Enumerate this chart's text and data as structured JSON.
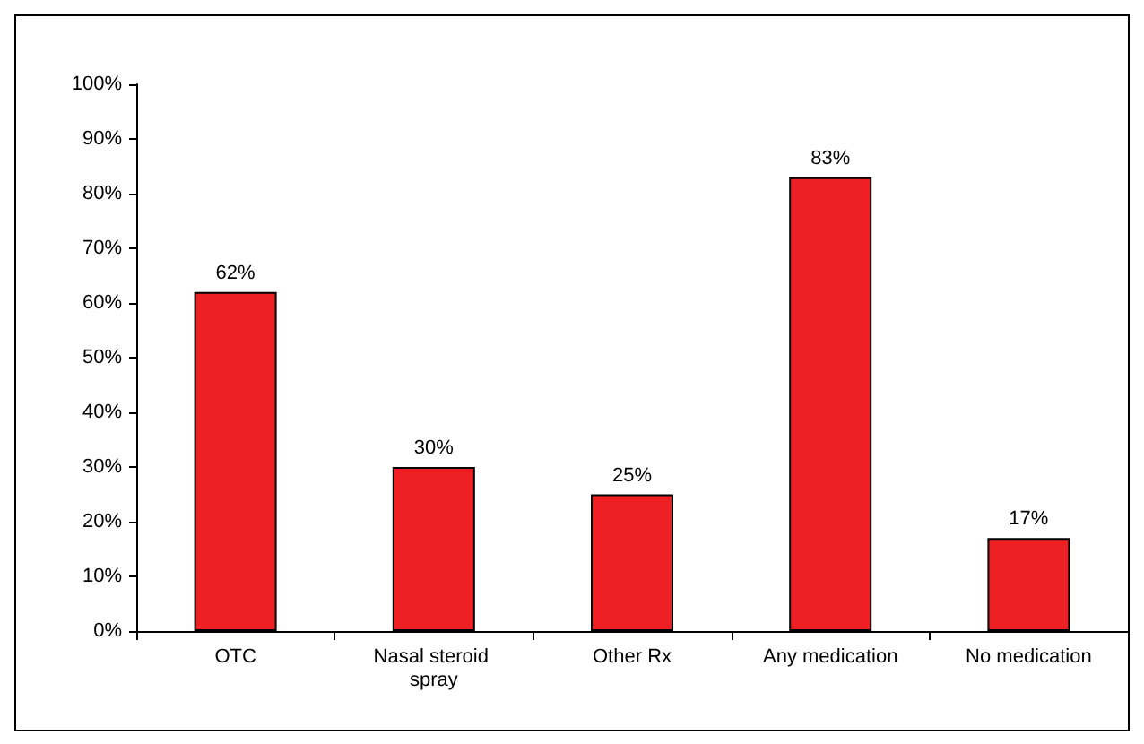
{
  "chart_data": {
    "type": "bar",
    "categories": [
      "OTC",
      "Nasal steroid spray",
      "Other Rx",
      "Any medication",
      "No medication"
    ],
    "values": [
      62,
      30,
      25,
      83,
      17
    ],
    "color": "#ee2024",
    "value_labels": [
      "62%",
      "30%",
      "25%",
      "83%",
      "17%"
    ],
    "ylim": [
      0,
      100
    ],
    "yticks": [
      {
        "value": 0,
        "label": "0%"
      },
      {
        "value": 10,
        "label": "10%"
      },
      {
        "value": 20,
        "label": "20%"
      },
      {
        "value": 30,
        "label": "30%"
      },
      {
        "value": 40,
        "label": "40%"
      },
      {
        "value": 50,
        "label": "50%"
      },
      {
        "value": 60,
        "label": "60%"
      },
      {
        "value": 70,
        "label": "70%"
      },
      {
        "value": 80,
        "label": "80%"
      },
      {
        "value": 90,
        "label": "90%"
      },
      {
        "value": 100,
        "label": "100%"
      }
    ],
    "grid": false
  }
}
